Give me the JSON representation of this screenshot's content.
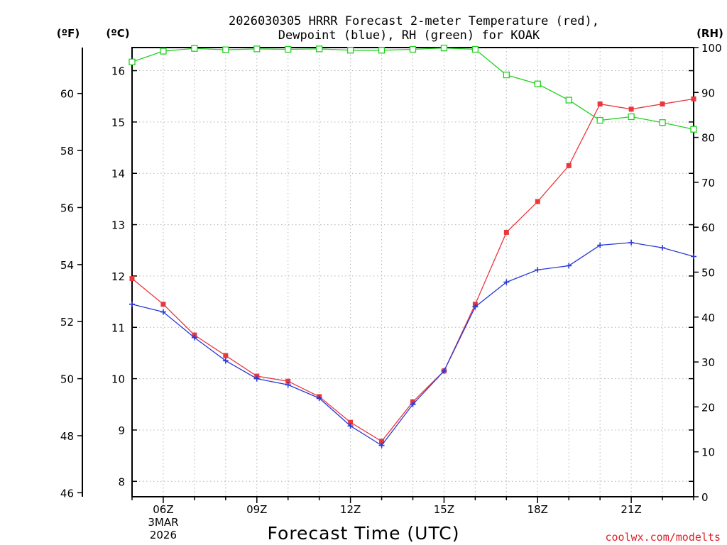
{
  "chart_data": {
    "type": "line",
    "title_line1": "2026030305 HRRR Forecast 2-meter Temperature (red),",
    "title_line2": "Dewpoint (blue), RH (green) for KOAK",
    "xlabel": "Forecast Time (UTC)",
    "left_outer_unit": "(ºF)",
    "left_inner_unit": "(ºC)",
    "right_unit": "(RH)",
    "credit": "coolwx.com/modelts",
    "x_hours": [
      5,
      6,
      7,
      8,
      9,
      10,
      11,
      12,
      13,
      14,
      15,
      16,
      17,
      18,
      19,
      20,
      21,
      22,
      23
    ],
    "x_ticks": [
      {
        "hour": 6,
        "label": "06Z",
        "sub1": "3MAR",
        "sub2": "2026"
      },
      {
        "hour": 9,
        "label": "09Z"
      },
      {
        "hour": 12,
        "label": "12Z"
      },
      {
        "hour": 15,
        "label": "15Z"
      },
      {
        "hour": 18,
        "label": "18Z"
      },
      {
        "hour": 21,
        "label": "21Z"
      }
    ],
    "xlim": [
      5,
      23
    ],
    "celsius_ylim": [
      7.7,
      16.45
    ],
    "celsius_ticks": [
      "8",
      "9",
      "10",
      "11",
      "12",
      "13",
      "14",
      "15",
      "16"
    ],
    "fahrenheit_ticks": [
      "46",
      "48",
      "50",
      "52",
      "54",
      "56",
      "58",
      "60"
    ],
    "rh_ylim": [
      0,
      100
    ],
    "rh_ticks": [
      "0",
      "10",
      "20",
      "30",
      "40",
      "50",
      "60",
      "70",
      "80",
      "90",
      "100"
    ],
    "series": [
      {
        "name": "Temperature",
        "unit": "C",
        "color": "#e8383d",
        "marker": "filled-square",
        "values": [
          11.95,
          11.45,
          10.85,
          10.45,
          10.05,
          9.95,
          9.65,
          9.15,
          8.78,
          9.55,
          10.15,
          11.45,
          12.85,
          13.45,
          14.15,
          15.35,
          15.25,
          15.35,
          15.45
        ]
      },
      {
        "name": "Dewpoint",
        "unit": "C",
        "color": "#2a3ad6",
        "marker": "plus",
        "values": [
          11.45,
          11.3,
          10.8,
          10.35,
          10.0,
          9.88,
          9.62,
          9.08,
          8.7,
          9.5,
          10.15,
          11.4,
          11.88,
          12.12,
          12.2,
          12.6,
          12.65,
          12.55,
          12.38
        ]
      },
      {
        "name": "RH",
        "unit": "%",
        "color": "#22d022",
        "marker": "open-square",
        "values": [
          96.8,
          99.2,
          99.8,
          99.5,
          99.7,
          99.6,
          99.7,
          99.4,
          99.4,
          99.6,
          99.9,
          99.6,
          93.9,
          91.9,
          88.3,
          83.8,
          84.6,
          83.3,
          81.8
        ]
      }
    ]
  }
}
